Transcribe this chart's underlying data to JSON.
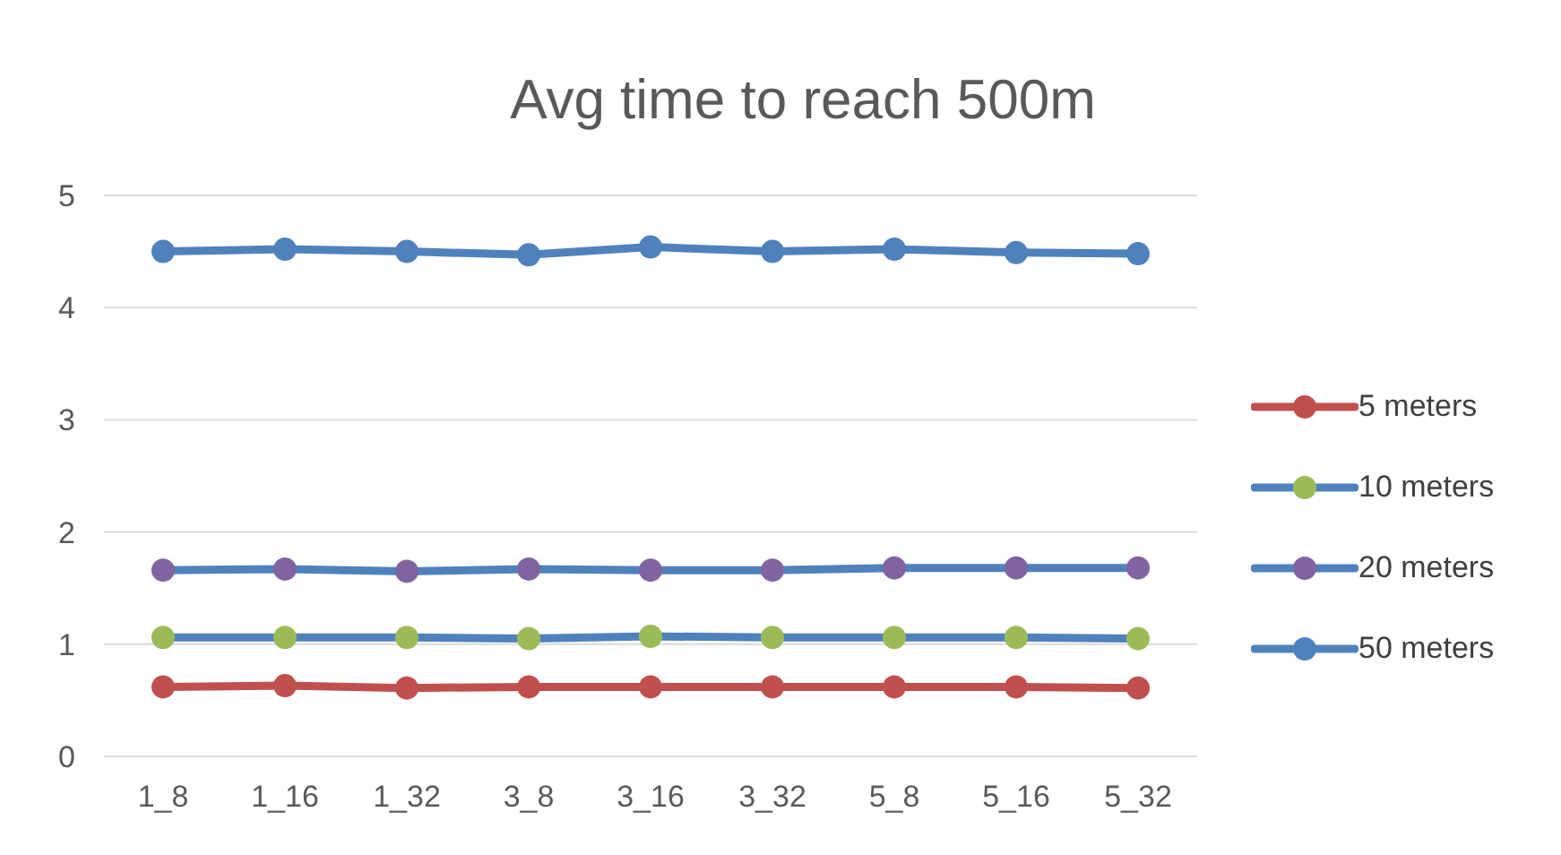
{
  "chart_data": {
    "type": "line",
    "title": "Avg time to reach 500m",
    "categories": [
      "1_8",
      "1_16",
      "1_32",
      "3_8",
      "3_16",
      "3_32",
      "5_8",
      "5_16",
      "5_32"
    ],
    "series": [
      {
        "name": "5 meters",
        "color": "#c0504d",
        "colors": [
          "#c0504d",
          "#c0504d",
          "#c0504d",
          "#c0504d",
          "#c0504d",
          "#c0504d",
          "#c0504d",
          "#c0504d",
          "#c0504d"
        ],
        "values": [
          0.62,
          0.63,
          0.61,
          0.62,
          0.62,
          0.62,
          0.62,
          0.62,
          0.61
        ]
      },
      {
        "name": "10 meters",
        "color": "#4f81bd",
        "colors": [
          "#9bbb59",
          "#9bbb59",
          "#9bbb59",
          "#9bbb59",
          "#9bbb59",
          "#9bbb59",
          "#9bbb59",
          "#9bbb59",
          "#9bbb59"
        ],
        "values": [
          1.06,
          1.06,
          1.06,
          1.05,
          1.07,
          1.06,
          1.06,
          1.06,
          1.05
        ]
      },
      {
        "name": "20 meters",
        "color": "#4f81bd",
        "colors": [
          "#8064a2",
          "#8064a2",
          "#8064a2",
          "#8064a2",
          "#8064a2",
          "#8064a2",
          "#8064a2",
          "#8064a2",
          "#8064a2"
        ],
        "values": [
          1.66,
          1.67,
          1.65,
          1.67,
          1.66,
          1.66,
          1.68,
          1.68,
          1.68
        ]
      },
      {
        "name": "50 meters",
        "color": "#4f81bd",
        "colors": [
          "#4f81bd",
          "#4f81bd",
          "#4f81bd",
          "#4f81bd",
          "#4f81bd",
          "#4f81bd",
          "#4f81bd",
          "#4f81bd",
          "#4f81bd"
        ],
        "values": [
          4.5,
          4.52,
          4.5,
          4.47,
          4.54,
          4.5,
          4.52,
          4.49,
          4.48
        ]
      }
    ],
    "ylim": [
      0,
      5
    ],
    "yticks": [
      0,
      1,
      2,
      3,
      4,
      5
    ],
    "grid": "y",
    "legend": "right",
    "marker": "circle",
    "line_style": "solid"
  }
}
